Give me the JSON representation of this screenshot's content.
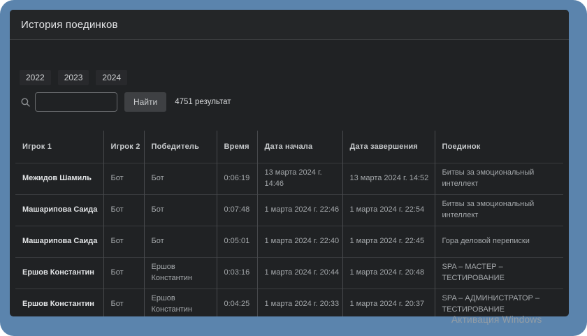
{
  "window": {
    "title": "История поединков"
  },
  "tabs": [
    {
      "label": "2022"
    },
    {
      "label": "2023"
    },
    {
      "label": "2024"
    }
  ],
  "search": {
    "input_value": "",
    "input_placeholder": "",
    "button_label": "Найти",
    "results_text": "4751 результат",
    "icon": "search-icon"
  },
  "table": {
    "columns": [
      "Игрок 1",
      "Игрок 2",
      "Победитель",
      "Время",
      "Дата начала",
      "Дата завершения",
      "Поединок"
    ],
    "rows": [
      [
        "Межидов Шамиль",
        "Бот",
        "Бот",
        "0:06:19",
        "13 марта 2024 г. 14:46",
        "13 марта 2024 г. 14:52",
        "Битвы за эмоциональный интеллект"
      ],
      [
        "Машарипова Саида",
        "Бот",
        "Бот",
        "0:07:48",
        "1 марта 2024 г. 22:46",
        "1 марта 2024 г. 22:54",
        "Битвы за эмоциональный интеллект"
      ],
      [
        "Машарипова Саида",
        "Бот",
        "Бот",
        "0:05:01",
        "1 марта 2024 г. 22:40",
        "1 марта 2024 г. 22:45",
        "Гора деловой переписки"
      ],
      [
        "Ершов Константин",
        "Бот",
        "Ершов Константин",
        "0:03:16",
        "1 марта 2024 г. 20:44",
        "1 марта 2024 г. 20:48",
        "SPA – МАСТЕР – ТЕСТИРОВАНИЕ"
      ],
      [
        "Ершов Константин",
        "Бот",
        "Ершов Константин",
        "0:04:25",
        "1 марта 2024 г. 20:33",
        "1 марта 2024 г. 20:37",
        "SPA – АДМИНИСТРАТОР – ТЕСТИРОВАНИЕ"
      ]
    ]
  },
  "watermark": "Активация Windows",
  "colors": {
    "frame_blue": "#5b84ad",
    "window_bg": "#202224",
    "titlebar_bg": "#242628",
    "button_bg": "#3e4043",
    "divider": "#47494c"
  }
}
